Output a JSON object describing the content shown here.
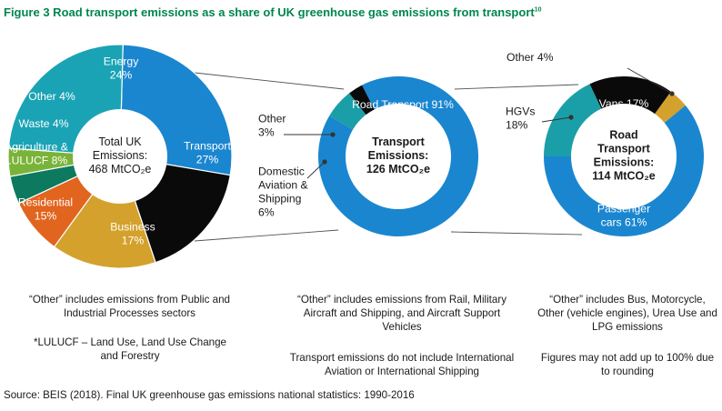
{
  "figure": {
    "title": "Figure 3 Road transport emissions as a share of UK greenhouse gas emissions from transport",
    "title_ref": "10",
    "source": "Source: BEIS (2018). Final UK greenhouse gas emissions national statistics: 1990-2016"
  },
  "chart_data": [
    {
      "type": "pie",
      "center_label": [
        "Total UK",
        "Emissions:",
        "468 MtCO₂e"
      ],
      "slices": [
        {
          "name": "Transport",
          "value": 27,
          "label": [
            "Transport",
            "27%"
          ],
          "color": "#1a86d0"
        },
        {
          "name": "Business",
          "value": 17,
          "label": [
            "Business",
            "17%"
          ],
          "color": "#0a0a0a"
        },
        {
          "name": "Residential",
          "value": 15,
          "label": [
            "Residential",
            "15%"
          ],
          "color": "#d4a12c"
        },
        {
          "name": "Agriculture & LULUCF",
          "value": 8,
          "label": [
            "Agriculture &",
            "LULUCF 8%"
          ],
          "color": "#e1641f"
        },
        {
          "name": "Waste",
          "value": 4,
          "label": [
            "Waste 4%"
          ],
          "color": "#0d7a5f"
        },
        {
          "name": "Other",
          "value": 4,
          "label": [
            "Other 4%"
          ],
          "color": "#7ab339"
        },
        {
          "name": "Energy",
          "value": 24,
          "label": [
            "Energy",
            "24%"
          ],
          "color": "#1aa3b5"
        }
      ]
    },
    {
      "type": "pie",
      "center_label": [
        "Transport",
        "Emissions:",
        "126 MtCO₂e"
      ],
      "slices": [
        {
          "name": "Road Transport",
          "value": 91,
          "label": [
            "Road Transport 91%"
          ],
          "color": "#1a86d0"
        },
        {
          "name": "Domestic Aviation & Shipping",
          "value": 6,
          "label": [
            "Domestic",
            "Aviation &",
            "Shipping",
            "6%"
          ],
          "color": "#1a9fa8"
        },
        {
          "name": "Other",
          "value": 3,
          "label": [
            "Other",
            "3%"
          ],
          "color": "#0a0a0a"
        }
      ]
    },
    {
      "type": "pie",
      "center_label": [
        "Road",
        "Transport",
        "Emissions:",
        "114 MtCO₂e"
      ],
      "slices": [
        {
          "name": "Other",
          "value": 4,
          "label": [
            "Other 4%"
          ],
          "color": "#d4a12c"
        },
        {
          "name": "Passenger cars",
          "value": 61,
          "label": [
            "Passenger",
            "cars 61%"
          ],
          "color": "#1a86d0"
        },
        {
          "name": "HGVs",
          "value": 18,
          "label": [
            "HGVs",
            "18%"
          ],
          "color": "#1a9fa8"
        },
        {
          "name": "Vans",
          "value": 17,
          "label": [
            "Vans 17%"
          ],
          "color": "#0a0a0a"
        }
      ]
    }
  ],
  "notes": {
    "left_1": "“Other” includes emissions from Public and Industrial Processes sectors",
    "left_2": "*LULUCF – Land Use, Land Use Change and Forestry",
    "middle_1": "“Other” includes emissions from Rail, Military Aircraft and Shipping, and Aircraft Support Vehicles",
    "middle_2": "Transport emissions do not include International Aviation or International Shipping",
    "right_1": "“Other” includes Bus, Motorcycle, Other (vehicle engines), Urea Use and LPG emissions",
    "right_2": "Figures may not add up to 100% due to rounding"
  }
}
